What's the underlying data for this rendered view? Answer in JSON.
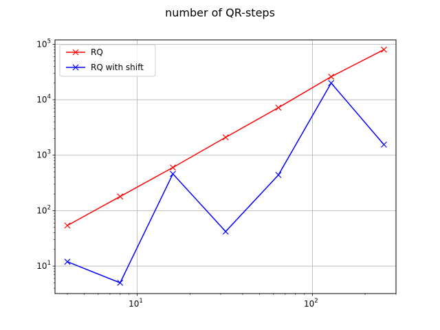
{
  "chart_data": {
    "type": "line",
    "title": "number of QR-steps",
    "xlabel": "",
    "ylabel": "",
    "xscale": "log",
    "yscale": "log",
    "xlim": [
      3.4,
      300
    ],
    "ylim": [
      3.2,
      120000
    ],
    "grid": true,
    "legend_position": "top-left",
    "x": [
      4,
      8,
      16,
      32,
      64,
      128,
      256
    ],
    "series": [
      {
        "name": "RQ",
        "color": "#ff0000",
        "marker": "x",
        "values": [
          54,
          180,
          600,
          2100,
          7200,
          26000,
          80000
        ]
      },
      {
        "name": "RQ with shift",
        "color": "#0000ff",
        "marker": "x",
        "values": [
          12,
          5,
          460,
          42,
          440,
          20000,
          1550
        ]
      }
    ],
    "x_ticks": [
      {
        "value": 10,
        "base": "10",
        "exp": "1"
      },
      {
        "value": 100,
        "base": "10",
        "exp": "2"
      }
    ],
    "y_ticks": [
      {
        "value": 10,
        "base": "10",
        "exp": "1"
      },
      {
        "value": 100,
        "base": "10",
        "exp": "2"
      },
      {
        "value": 1000,
        "base": "10",
        "exp": "3"
      },
      {
        "value": 10000,
        "base": "10",
        "exp": "4"
      },
      {
        "value": 100000,
        "base": "10",
        "exp": "5"
      }
    ]
  }
}
